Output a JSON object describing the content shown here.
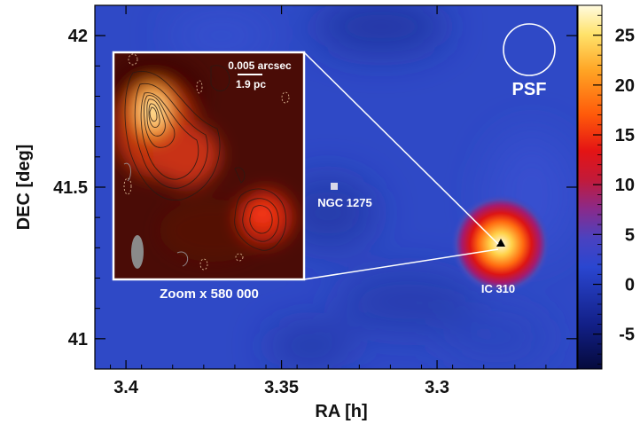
{
  "chart_data": {
    "type": "heatmap",
    "title": "",
    "xlabel": "RA [h]",
    "ylabel": "DEC [deg]",
    "xlim": [
      3.41,
      3.255
    ],
    "ylim": [
      40.9,
      42.1
    ],
    "x_ticks": [
      {
        "value": 3.4,
        "label": "3.4"
      },
      {
        "value": 3.35,
        "label": "3.35"
      },
      {
        "value": 3.3,
        "label": "3.3"
      }
    ],
    "y_ticks": [
      {
        "value": 42,
        "label": "42"
      },
      {
        "value": 41.5,
        "label": "41.5"
      },
      {
        "value": 41,
        "label": "41"
      }
    ],
    "colorbar": {
      "min": -8.5,
      "max": 28,
      "ticks": [
        {
          "value": 25,
          "label": "25"
        },
        {
          "value": 20,
          "label": "20"
        },
        {
          "value": 15,
          "label": "15"
        },
        {
          "value": 10,
          "label": "10"
        },
        {
          "value": 5,
          "label": "5"
        },
        {
          "value": 0,
          "label": "0"
        },
        {
          "value": -5,
          "label": "-5"
        }
      ]
    },
    "sources": [
      {
        "name": "IC 310",
        "ra": 3.278,
        "dec": 41.32,
        "marker": "triangle",
        "peak": 27
      },
      {
        "name": "NGC 1275",
        "ra": 3.33,
        "dec": 41.51,
        "marker": "square"
      }
    ],
    "psf_label": "PSF",
    "inset": {
      "scale_label_1": "0.005 arcsec",
      "scale_label_2": "1.9 pc",
      "zoom_label": "Zoom x 580 000"
    }
  }
}
